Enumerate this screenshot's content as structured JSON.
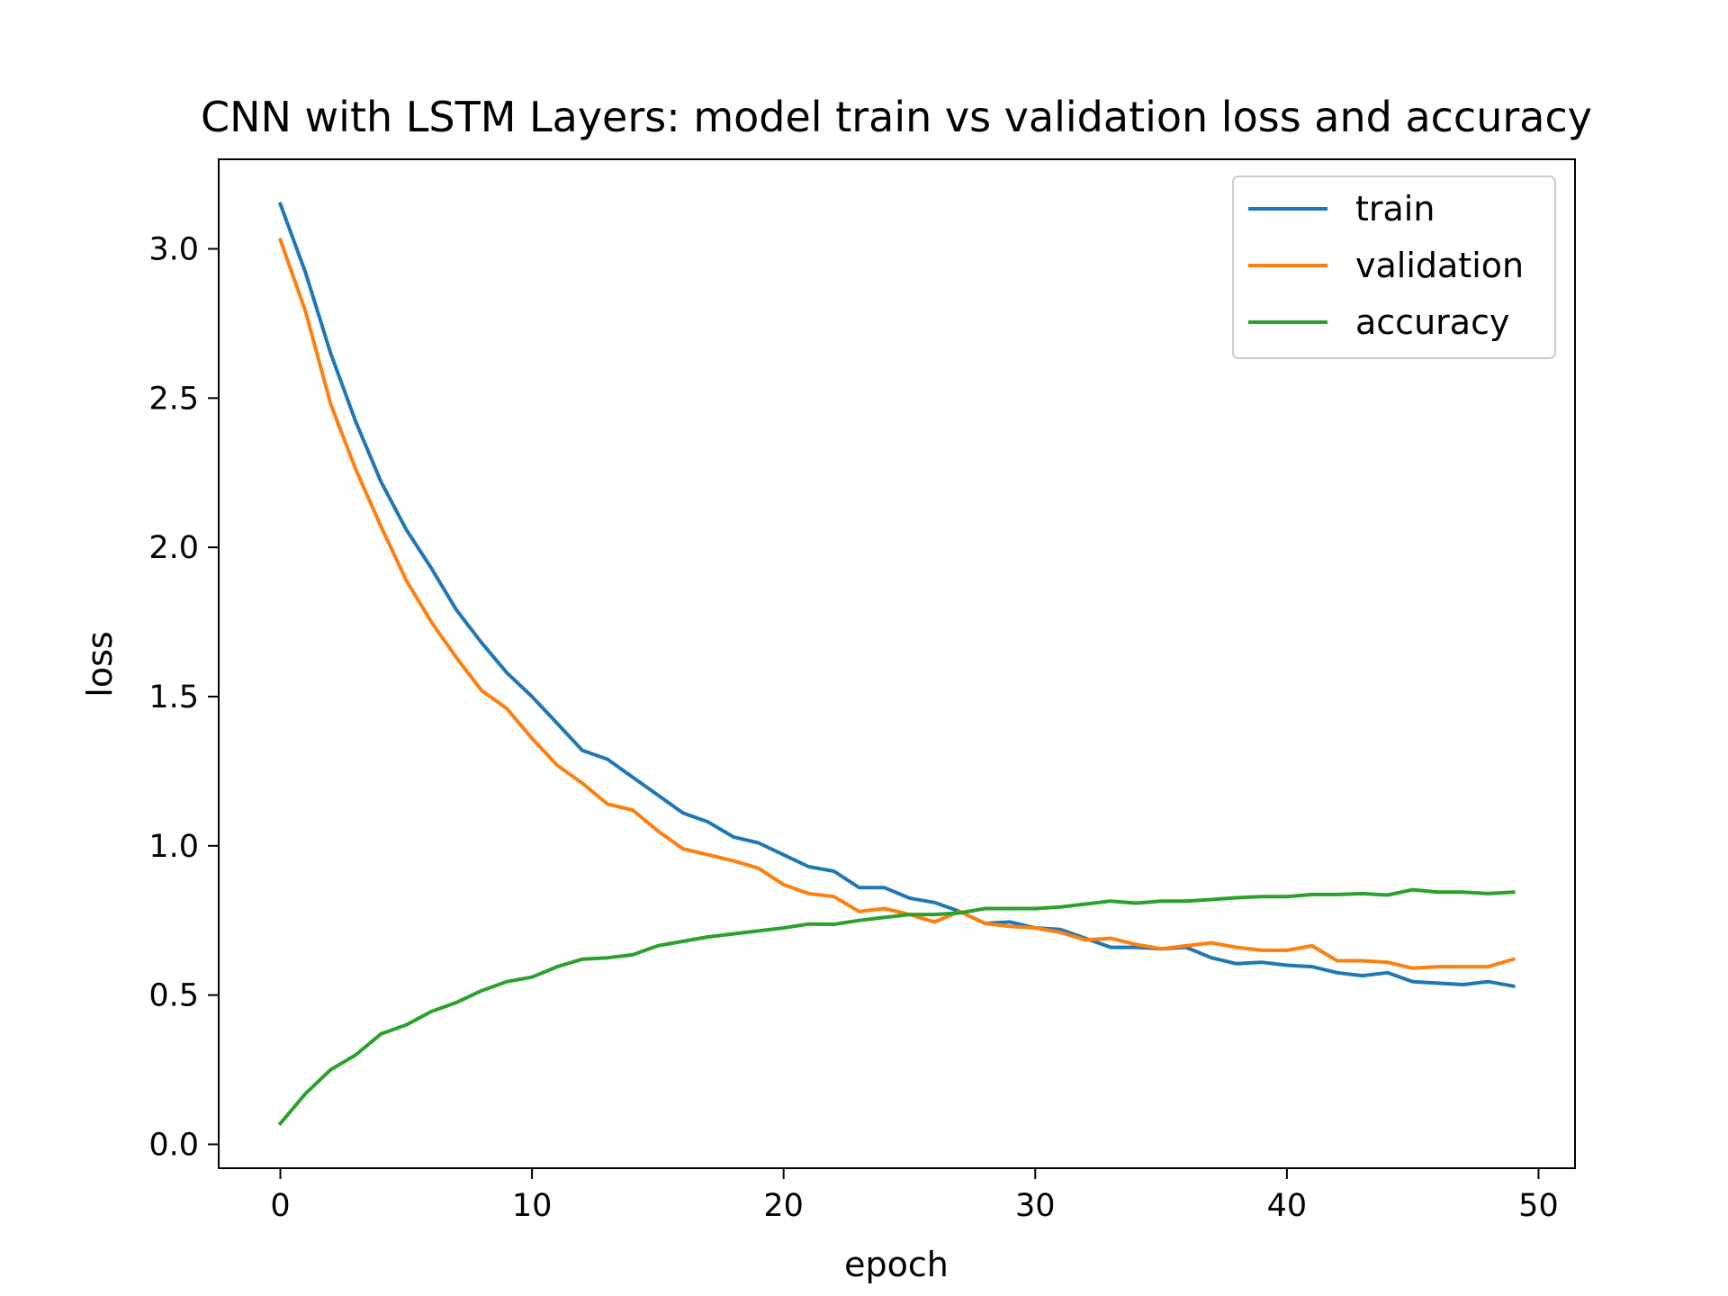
{
  "chart_data": {
    "type": "line",
    "title": "CNN with LSTM Layers: model train vs validation loss and accuracy",
    "xlabel": "epoch",
    "ylabel": "loss",
    "xlim": [
      -2.45,
      51.45
    ],
    "ylim": [
      -0.08,
      3.3
    ],
    "xticks": [
      0,
      10,
      20,
      30,
      40,
      50
    ],
    "yticks": [
      0.0,
      0.5,
      1.0,
      1.5,
      2.0,
      2.5,
      3.0
    ],
    "xtick_labels": [
      "0",
      "10",
      "20",
      "30",
      "40",
      "50"
    ],
    "ytick_labels": [
      "0.0",
      "0.5",
      "1.0",
      "1.5",
      "2.0",
      "2.5",
      "3.0"
    ],
    "grid": false,
    "legend_position": "top-right",
    "x": [
      0,
      1,
      2,
      3,
      4,
      5,
      6,
      7,
      8,
      9,
      10,
      11,
      12,
      13,
      14,
      15,
      16,
      17,
      18,
      19,
      20,
      21,
      22,
      23,
      24,
      25,
      26,
      27,
      28,
      29,
      30,
      31,
      32,
      33,
      34,
      35,
      36,
      37,
      38,
      39,
      40,
      41,
      42,
      43,
      44,
      45,
      46,
      47,
      48,
      49
    ],
    "series": [
      {
        "name": "train",
        "color": "#1f77b4",
        "values": [
          3.15,
          2.92,
          2.65,
          2.42,
          2.22,
          2.06,
          1.93,
          1.79,
          1.68,
          1.58,
          1.5,
          1.41,
          1.32,
          1.29,
          1.23,
          1.17,
          1.11,
          1.08,
          1.03,
          1.01,
          0.97,
          0.93,
          0.915,
          0.86,
          0.86,
          0.825,
          0.81,
          0.78,
          0.74,
          0.745,
          0.725,
          0.72,
          0.69,
          0.66,
          0.66,
          0.655,
          0.66,
          0.625,
          0.605,
          0.61,
          0.6,
          0.595,
          0.575,
          0.565,
          0.575,
          0.545,
          0.54,
          0.535,
          0.545,
          0.53
        ]
      },
      {
        "name": "validation",
        "color": "#ff7f0e",
        "values": [
          3.03,
          2.79,
          2.48,
          2.26,
          2.07,
          1.89,
          1.75,
          1.63,
          1.52,
          1.46,
          1.36,
          1.27,
          1.21,
          1.14,
          1.12,
          1.05,
          0.99,
          0.97,
          0.95,
          0.925,
          0.87,
          0.84,
          0.83,
          0.78,
          0.79,
          0.77,
          0.745,
          0.78,
          0.74,
          0.73,
          0.725,
          0.71,
          0.685,
          0.69,
          0.67,
          0.655,
          0.665,
          0.675,
          0.66,
          0.65,
          0.65,
          0.665,
          0.615,
          0.615,
          0.61,
          0.59,
          0.595,
          0.595,
          0.595,
          0.62
        ]
      },
      {
        "name": "accuracy",
        "color": "#2ca02c",
        "values": [
          0.07,
          0.17,
          0.25,
          0.3,
          0.37,
          0.4,
          0.445,
          0.475,
          0.515,
          0.545,
          0.56,
          0.595,
          0.62,
          0.625,
          0.635,
          0.665,
          0.68,
          0.695,
          0.705,
          0.715,
          0.725,
          0.738,
          0.737,
          0.75,
          0.76,
          0.77,
          0.77,
          0.775,
          0.79,
          0.79,
          0.79,
          0.795,
          0.805,
          0.815,
          0.808,
          0.815,
          0.815,
          0.82,
          0.826,
          0.83,
          0.83,
          0.837,
          0.837,
          0.84,
          0.835,
          0.853,
          0.845,
          0.845,
          0.84,
          0.845
        ]
      }
    ]
  }
}
